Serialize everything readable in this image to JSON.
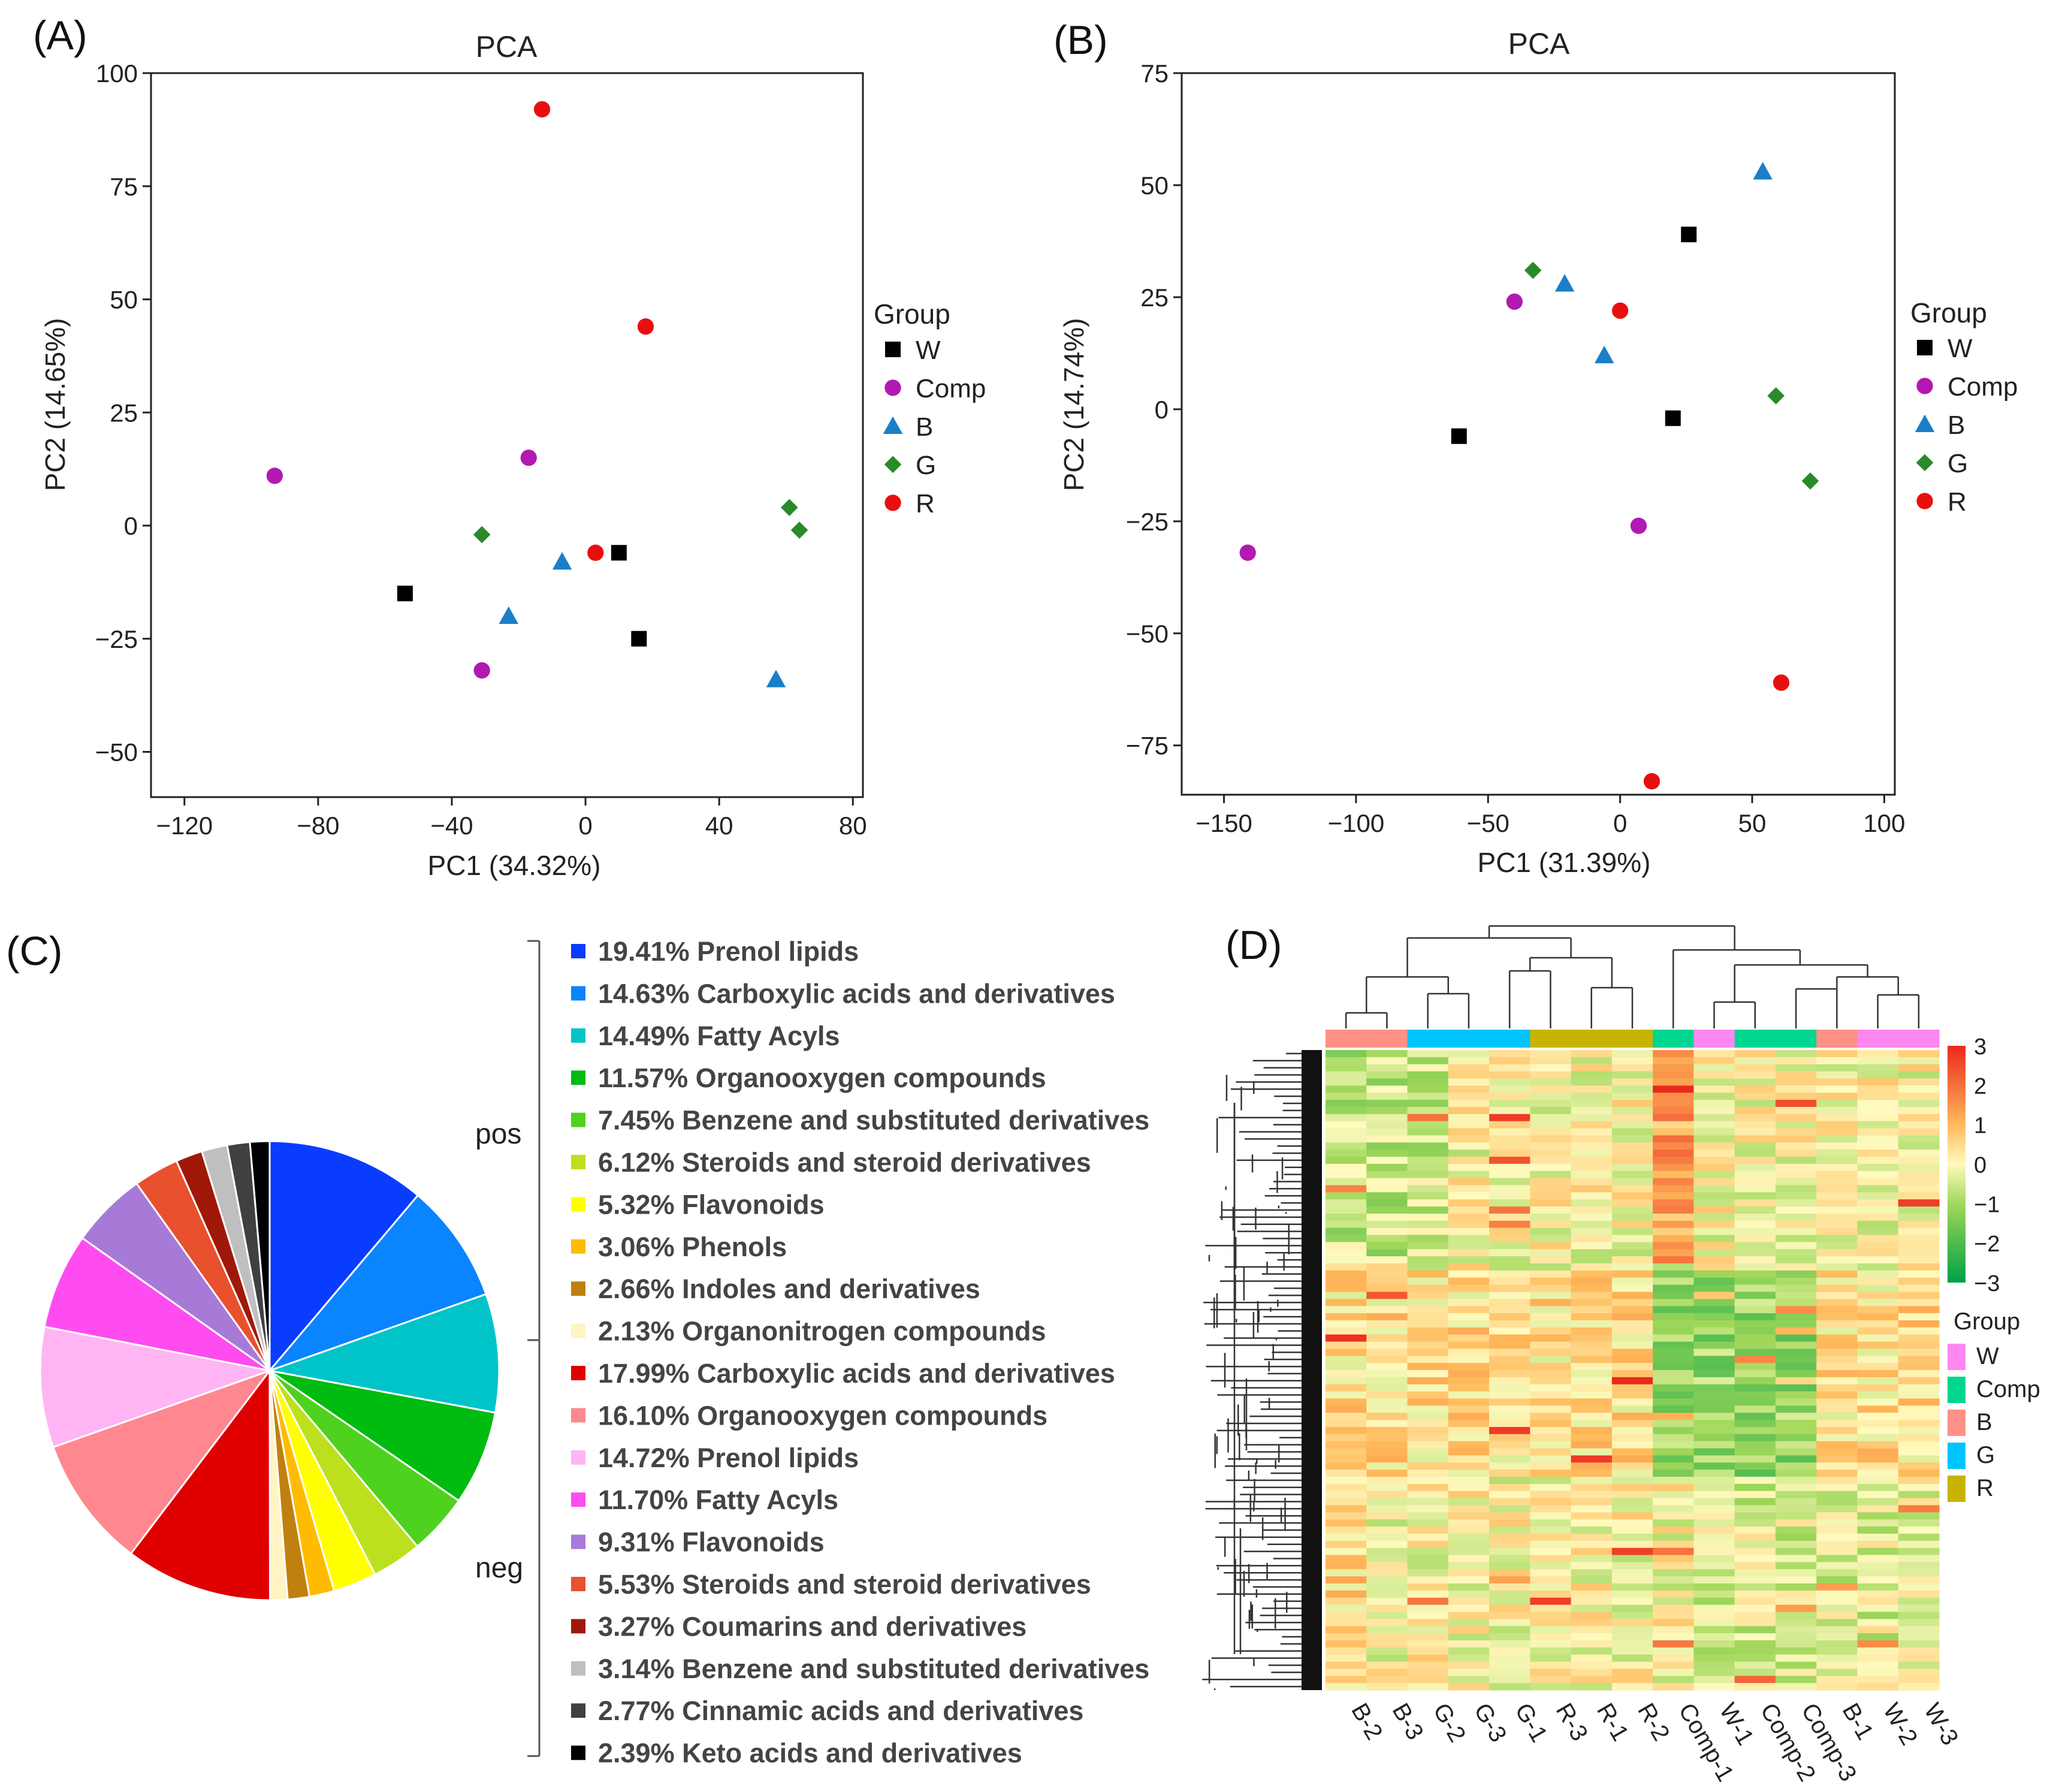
{
  "colors": {
    "W": "#000000",
    "Comp": "#b219b2",
    "B": "#1a7fc8",
    "G": "#2a8a2a",
    "R": "#e8100f"
  },
  "chart_data": [
    {
      "panel": "(A)",
      "type": "scatter",
      "title": "PCA",
      "xlabel": "PC1 (34.32%)",
      "ylabel": "PC2 (14.65%)",
      "xlim": [
        -130,
        83
      ],
      "ylim": [
        -60,
        100
      ],
      "xticks": [
        -120,
        -80,
        -40,
        0,
        40,
        80
      ],
      "yticks": [
        -50,
        -25,
        0,
        25,
        50,
        75,
        100
      ],
      "legend_title": "Group",
      "series": [
        {
          "name": "W",
          "marker": "square",
          "points": [
            [
              -54,
              -15
            ],
            [
              10,
              -6
            ],
            [
              16,
              -25
            ]
          ]
        },
        {
          "name": "Comp",
          "marker": "circle",
          "points": [
            [
              -93,
              11
            ],
            [
              -17,
              15
            ],
            [
              -31,
              -32
            ]
          ]
        },
        {
          "name": "B",
          "marker": "triangle",
          "points": [
            [
              -7,
              -8
            ],
            [
              -23,
              -20
            ],
            [
              57,
              -34
            ]
          ]
        },
        {
          "name": "G",
          "marker": "diamond",
          "points": [
            [
              -31,
              -2
            ],
            [
              61,
              4
            ],
            [
              64,
              -1
            ]
          ]
        },
        {
          "name": "R",
          "marker": "circle",
          "points": [
            [
              -13,
              92
            ],
            [
              18,
              44
            ],
            [
              3,
              -6
            ]
          ]
        }
      ]
    },
    {
      "panel": "(B)",
      "type": "scatter",
      "title": "PCA",
      "xlabel": "PC1 (31.39%)",
      "ylabel": "PC2 (14.74%)",
      "xlim": [
        -166,
        104
      ],
      "ylim": [
        -86,
        75
      ],
      "xticks": [
        -150,
        -100,
        -50,
        0,
        50,
        100
      ],
      "yticks": [
        -75,
        -50,
        -25,
        0,
        25,
        50,
        75
      ],
      "legend_title": "Group",
      "series": [
        {
          "name": "W",
          "marker": "square",
          "points": [
            [
              -61,
              -6
            ],
            [
              26,
              39
            ],
            [
              20,
              -2
            ]
          ]
        },
        {
          "name": "Comp",
          "marker": "circle",
          "points": [
            [
              -40,
              24
            ],
            [
              -141,
              -32
            ],
            [
              7,
              -26
            ]
          ]
        },
        {
          "name": "B",
          "marker": "triangle",
          "points": [
            [
              -21,
              28
            ],
            [
              -6,
              12
            ],
            [
              54,
              53
            ]
          ]
        },
        {
          "name": "G",
          "marker": "diamond",
          "points": [
            [
              -33,
              31
            ],
            [
              59,
              3
            ],
            [
              72,
              -16
            ]
          ]
        },
        {
          "name": "R",
          "marker": "circle",
          "points": [
            [
              0,
              22
            ],
            [
              61,
              -61
            ],
            [
              12,
              -83
            ]
          ]
        }
      ]
    },
    {
      "panel": "(C)",
      "type": "pie",
      "groups": [
        {
          "label": "pos",
          "items": [
            {
              "pct": 19.41,
              "text": "19.41% Prenol lipids",
              "color": "#0a3cff"
            },
            {
              "pct": 14.63,
              "text": "14.63% Carboxylic acids and derivatives",
              "color": "#0a84ff"
            },
            {
              "pct": 14.49,
              "text": "14.49% Fatty Acyls",
              "color": "#00c4c8"
            },
            {
              "pct": 11.57,
              "text": "11.57% Organooxygen compounds",
              "color": "#00bb10"
            },
            {
              "pct": 7.45,
              "text": "7.45% Benzene and substituted derivatives",
              "color": "#4fd11f"
            },
            {
              "pct": 6.12,
              "text": "6.12% Steroids and steroid derivatives",
              "color": "#bde01e"
            },
            {
              "pct": 5.32,
              "text": "5.32% Flavonoids",
              "color": "#ffff00"
            },
            {
              "pct": 3.06,
              "text": "3.06% Phenols",
              "color": "#ffbb00"
            },
            {
              "pct": 2.66,
              "text": "2.66% Indoles and derivatives",
              "color": "#c08010"
            },
            {
              "pct": 2.13,
              "text": "2.13% Organonitrogen compounds",
              "color": "#fff4c2"
            }
          ]
        },
        {
          "label": "neg",
          "items": [
            {
              "pct": 17.99,
              "text": "17.99% Carboxylic acids and derivatives",
              "color": "#e00000"
            },
            {
              "pct": 16.1,
              "text": "16.10% Organooxygen compounds",
              "color": "#ff8890"
            },
            {
              "pct": 14.72,
              "text": "14.72% Prenol lipids",
              "color": "#ffb4f4"
            },
            {
              "pct": 11.7,
              "text": "11.70% Fatty Acyls",
              "color": "#ff4cf0"
            },
            {
              "pct": 9.31,
              "text": "9.31% Flavonoids",
              "color": "#a87ad8"
            },
            {
              "pct": 5.53,
              "text": "5.53% Steroids and steroid derivatives",
              "color": "#e8502e"
            },
            {
              "pct": 3.27,
              "text": "3.27% Coumarins and derivatives",
              "color": "#a01808"
            },
            {
              "pct": 3.14,
              "text": "3.14% Benzene and substituted derivatives",
              "color": "#bfbfbf"
            },
            {
              "pct": 2.77,
              "text": "2.77% Cinnamic acids and derivatives",
              "color": "#404040"
            },
            {
              "pct": 2.39,
              "text": "2.39% Keto acids and derivatives",
              "color": "#000000"
            }
          ]
        }
      ]
    },
    {
      "panel": "(D)",
      "type": "heatmap",
      "columns": [
        "B-2",
        "B-3",
        "G-2",
        "G-3",
        "G-1",
        "R-3",
        "R-1",
        "R-2",
        "Comp-1",
        "W-1",
        "Comp-2",
        "Comp-3",
        "B-1",
        "W-2",
        "W-3"
      ],
      "column_groups": [
        "B",
        "B",
        "G",
        "G",
        "G",
        "R",
        "R",
        "R",
        "Comp",
        "W",
        "Comp",
        "Comp",
        "B",
        "W",
        "W"
      ],
      "color_scale": [
        -3,
        3
      ],
      "colorbar_ticks": [
        3,
        2,
        1,
        0,
        -1,
        -2,
        -3
      ],
      "legend_title": "Group",
      "legend": [
        {
          "name": "W",
          "color": "#ff88f0"
        },
        {
          "name": "Comp",
          "color": "#00d68f"
        },
        {
          "name": "B",
          "color": "#ff9186"
        },
        {
          "name": "G",
          "color": "#00c4ff"
        },
        {
          "name": "R",
          "color": "#c8b400"
        }
      ]
    }
  ]
}
